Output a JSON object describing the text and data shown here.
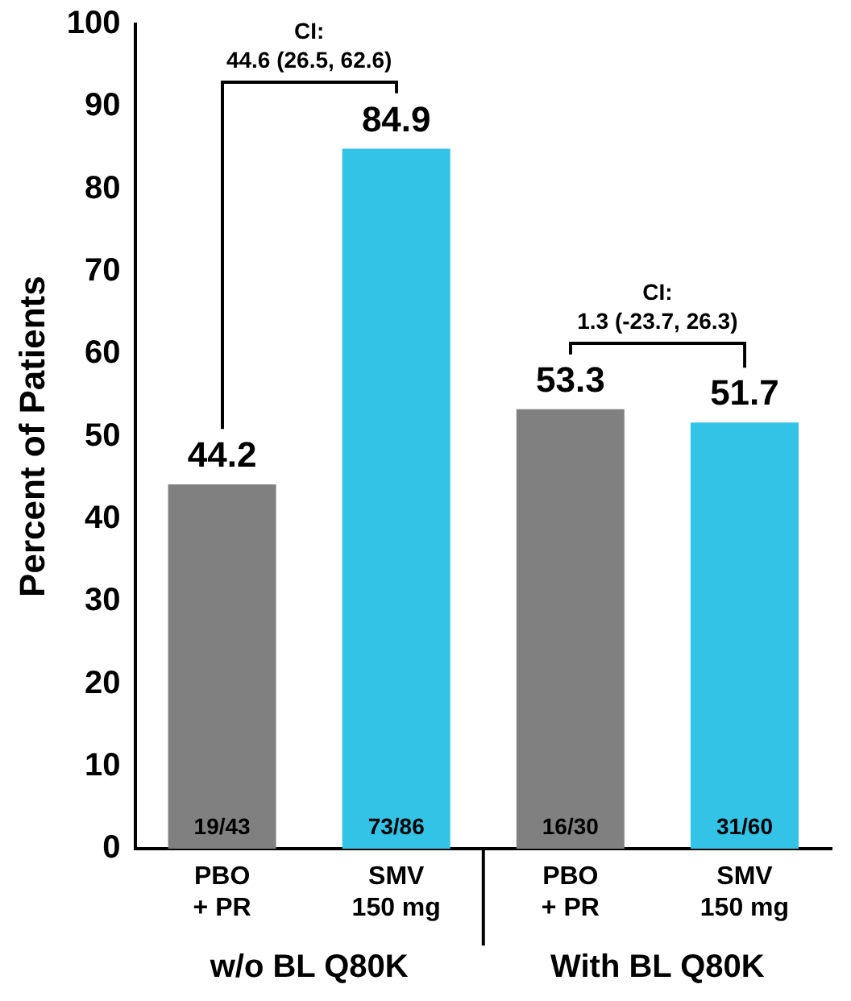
{
  "chart_data": {
    "type": "bar",
    "ylabel": "Percent of Patients",
    "categories": [
      "PBO\n+ PR",
      "SMV\n150 mg",
      "PBO\n+ PR",
      "SMV\n150 mg"
    ],
    "values": [
      44.2,
      84.9,
      53.3,
      51.7
    ],
    "colors": [
      "#808080",
      "#33c3e6",
      "#808080",
      "#33c3e6"
    ],
    "ylim": [
      0,
      100
    ],
    "yticks": [
      0,
      10,
      20,
      30,
      40,
      50,
      60,
      70,
      80,
      90,
      100
    ],
    "data_labels": true,
    "grid": false,
    "legend": false,
    "annotations": [
      "w/o BL Q80K",
      "With BL Q80K",
      "CI:\n44.6 (26.5, 62.6)",
      "CI:\n1.3 (-23.7, 26.3)",
      "19/43",
      "73/86",
      "16/30",
      "31/60"
    ]
  }
}
